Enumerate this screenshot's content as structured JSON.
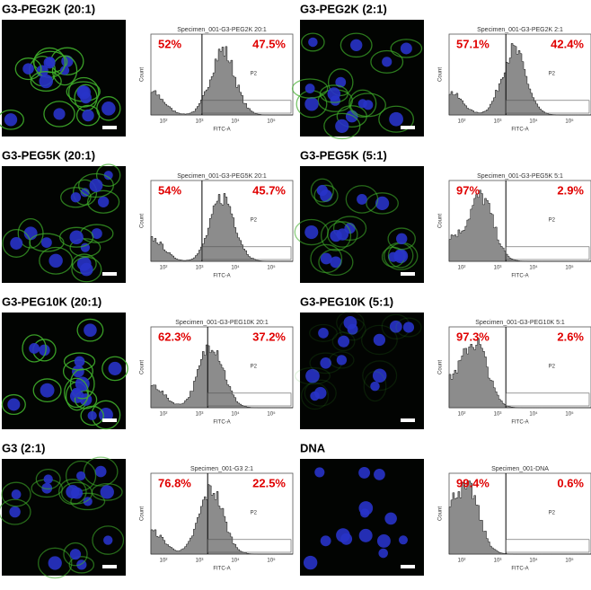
{
  "panels": [
    {
      "label": "G3-PEG2K (20:1)",
      "specimen": "Specimen_001-G3-PEG2K 20:1",
      "left": "52%",
      "right": "47.5%"
    },
    {
      "label": "G3-PEG2K (2:1)",
      "specimen": "Specimen_001-G3-PEG2K 2:1",
      "left": "57.1%",
      "right": "42.4%"
    },
    {
      "label": "G3-PEG5K (20:1)",
      "specimen": "Specimen_001-G3-PEG5K 20:1",
      "left": "54%",
      "right": "45.7%"
    },
    {
      "label": "G3-PEG5K (5:1)",
      "specimen": "Specimen_001-G3-PEG5K 5:1",
      "left": "97%",
      "right": "2.9%"
    },
    {
      "label": "G3-PEG10K (20:1)",
      "specimen": "Specimen_001-G3-PEG10K 20:1",
      "left": "62.3%",
      "right": "37.2%"
    },
    {
      "label": "G3-PEG10K (5:1)",
      "specimen": "Specimen_001-G3-PEG10K 5:1",
      "left": "97.3%",
      "right": "2.6%"
    },
    {
      "label": "G3 (2:1)",
      "specimen": "Specimen_001-G3 2:1",
      "left": "76.8%",
      "right": "22.5%"
    },
    {
      "label": "DNA",
      "specimen": "Specimen_001-DNA",
      "left": "99.4%",
      "right": "0.6%"
    }
  ],
  "gate": "P2",
  "x_axis_label": "FITC-A",
  "y_axis_label": "Count",
  "x_ticks": [
    "10²",
    "10³",
    "10⁴",
    "10⁵"
  ]
}
